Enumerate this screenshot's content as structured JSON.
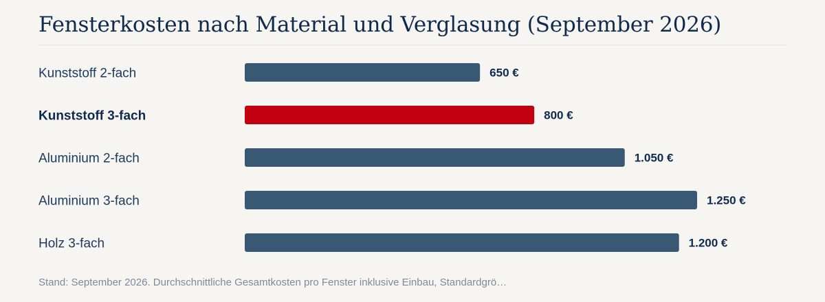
{
  "chart_data": {
    "type": "bar",
    "orientation": "horizontal",
    "title": "Fensterkosten nach Material und Verglasung (September 2026)",
    "categories": [
      "Kunststoff 2-fach",
      "Kunststoff 3-fach",
      "Aluminium 2-fach",
      "Aluminium 3-fach",
      "Holz 3-fach"
    ],
    "values": [
      650,
      800,
      1050,
      1250,
      1200
    ],
    "value_labels": [
      "650 €",
      "800 €",
      "1.050 €",
      "1.250 €",
      "1.200 €"
    ],
    "highlight_index": 1,
    "colors": {
      "bar": "#385873",
      "highlight": "#c2000f",
      "label": "#1b3a5c",
      "highlight_label": "#0f2a4d"
    },
    "xlim": [
      0,
      1250
    ],
    "grid": false,
    "footnote": "Stand: September 2026. Durchschnittliche Gesamtkosten pro Fenster inklusive Einbau, Standardgrö…"
  }
}
